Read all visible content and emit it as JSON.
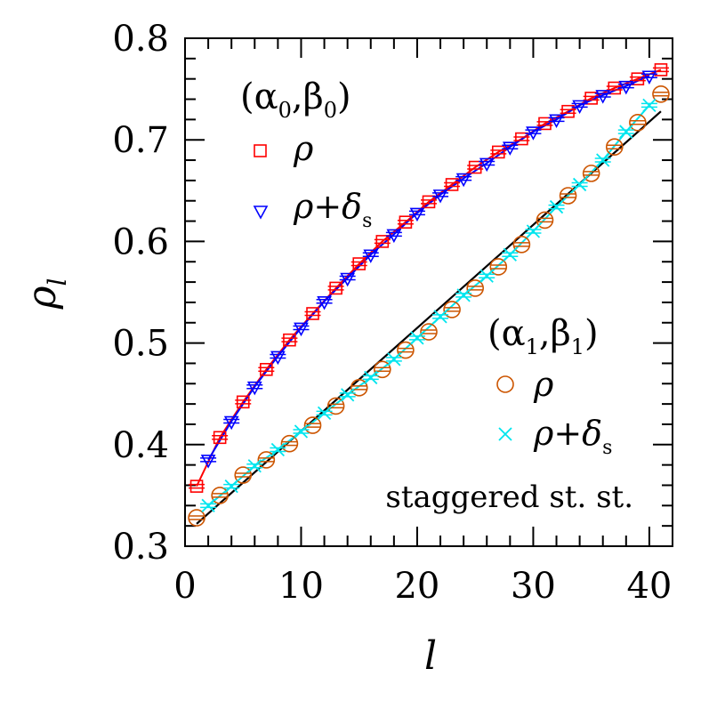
{
  "chart_data": {
    "type": "scatter",
    "xlabel": "l",
    "ylabel": "ρ",
    "ylabel_sub": "l",
    "xlim": [
      0,
      42
    ],
    "ylim": [
      0.3,
      0.8
    ],
    "xticks": [
      0,
      10,
      20,
      30,
      40
    ],
    "yticks": [
      0.3,
      0.4,
      0.5,
      0.6,
      0.7,
      0.8
    ],
    "ytick_labels": [
      "0.3",
      "0.4",
      "0.5",
      "0.6",
      "0.7",
      "0.8"
    ],
    "annotation": "staggered st. st.",
    "groups": [
      {
        "label": "(α",
        "sub1": "0",
        "mid": ",β",
        "sub2": "0",
        "end": ")"
      },
      {
        "label": "(α",
        "sub1": "1",
        "mid": ",β",
        "sub2": "1",
        "end": ")"
      }
    ],
    "series": [
      {
        "name": "ρ",
        "group": 0,
        "marker": "square",
        "color": "#ff0000",
        "line": true,
        "x": [
          1,
          3,
          5,
          7,
          9,
          11,
          13,
          15,
          17,
          19,
          21,
          23,
          25,
          27,
          29,
          31,
          33,
          35,
          37,
          39,
          41
        ],
        "y": [
          0.359,
          0.407,
          0.442,
          0.474,
          0.503,
          0.529,
          0.554,
          0.578,
          0.6,
          0.619,
          0.639,
          0.656,
          0.673,
          0.688,
          0.701,
          0.716,
          0.728,
          0.741,
          0.751,
          0.76,
          0.769
        ]
      },
      {
        "name": "ρ+δ",
        "name_sub": "s",
        "group": 0,
        "marker": "triangle-down",
        "color": "#0000ff",
        "line": true,
        "x": [
          2,
          4,
          6,
          8,
          10,
          12,
          14,
          16,
          18,
          20,
          22,
          24,
          26,
          28,
          30,
          32,
          34,
          36,
          38,
          40
        ],
        "y": [
          0.385,
          0.423,
          0.457,
          0.487,
          0.515,
          0.541,
          0.564,
          0.587,
          0.607,
          0.628,
          0.646,
          0.662,
          0.677,
          0.693,
          0.708,
          0.72,
          0.734,
          0.744,
          0.753,
          0.763
        ]
      },
      {
        "name": "ρ",
        "group": 1,
        "marker": "circle",
        "color": "#cc5500",
        "line": false,
        "x": [
          1,
          3,
          5,
          7,
          9,
          11,
          13,
          15,
          17,
          19,
          21,
          23,
          25,
          27,
          29,
          31,
          33,
          35,
          37,
          39,
          41
        ],
        "y": [
          0.328,
          0.35,
          0.37,
          0.385,
          0.401,
          0.419,
          0.438,
          0.456,
          0.474,
          0.493,
          0.511,
          0.533,
          0.554,
          0.575,
          0.597,
          0.621,
          0.645,
          0.667,
          0.693,
          0.717,
          0.745
        ]
      },
      {
        "name": "ρ+δ",
        "name_sub": "s",
        "group": 1,
        "marker": "x",
        "color": "#00e5ee",
        "line": true,
        "x": [
          2,
          4,
          6,
          8,
          10,
          12,
          14,
          16,
          18,
          20,
          22,
          24,
          26,
          28,
          30,
          32,
          34,
          36,
          38,
          40
        ],
        "y": [
          0.34,
          0.359,
          0.379,
          0.395,
          0.413,
          0.431,
          0.449,
          0.466,
          0.484,
          0.505,
          0.526,
          0.547,
          0.566,
          0.587,
          0.61,
          0.634,
          0.656,
          0.68,
          0.708,
          0.734
        ]
      }
    ],
    "fit_line": {
      "color": "#000000",
      "x": [
        1,
        41
      ],
      "y": [
        0.322,
        0.728
      ]
    }
  }
}
